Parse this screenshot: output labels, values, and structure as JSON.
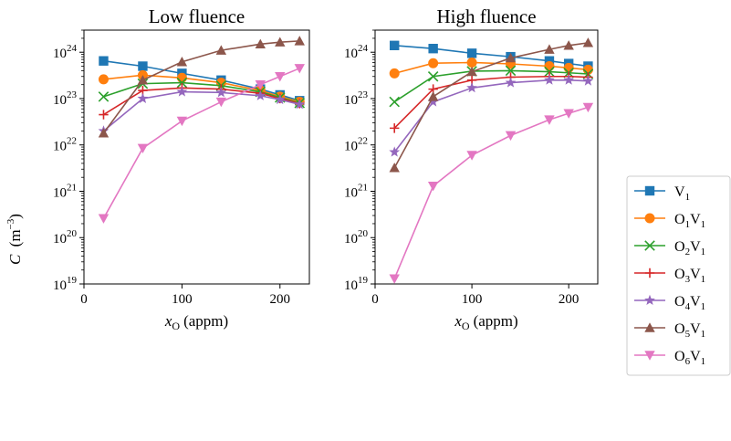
{
  "figure": {
    "ylabel_main": "C",
    "ylabel_unit": "(m",
    "ylabel_exp": "−3",
    "ylabel_close": ")",
    "xlabel_main": "x",
    "xlabel_sub": "O",
    "xlabel_unit": "(appm)"
  },
  "legend": [
    {
      "label": "V",
      "sub": "1",
      "color": "#1f77b4",
      "marker": "square"
    },
    {
      "label": "O",
      "sub": "1",
      "tail": "V",
      "tail_sub": "1",
      "color": "#ff7f0e",
      "marker": "circle"
    },
    {
      "label": "O",
      "sub": "2",
      "tail": "V",
      "tail_sub": "1",
      "color": "#2ca02c",
      "marker": "x"
    },
    {
      "label": "O",
      "sub": "3",
      "tail": "V",
      "tail_sub": "1",
      "color": "#d62728",
      "marker": "plus"
    },
    {
      "label": "O",
      "sub": "4",
      "tail": "V",
      "tail_sub": "1",
      "color": "#9467bd",
      "marker": "star"
    },
    {
      "label": "O",
      "sub": "5",
      "tail": "V",
      "tail_sub": "1",
      "color": "#8c564b",
      "marker": "triangle-up"
    },
    {
      "label": "O",
      "sub": "6",
      "tail": "V",
      "tail_sub": "1",
      "color": "#e377c2",
      "marker": "triangle-down"
    }
  ],
  "chart_data": [
    {
      "type": "line",
      "title": "Low fluence",
      "xlabel": "x_O (appm)",
      "ylabel": "C (m^-3)",
      "yscale": "log",
      "xlim": [
        0,
        230
      ],
      "ylim": [
        1e+19,
        3e+24
      ],
      "xticks": [
        0,
        100,
        200
      ],
      "yticks_exp": [
        19,
        20,
        21,
        22,
        23,
        24
      ],
      "x": [
        20,
        60,
        100,
        140,
        180,
        200,
        220
      ],
      "series": [
        {
          "name": "V1",
          "values": [
            6.5e+23,
            5e+23,
            3.5e+23,
            2.5e+23,
            1.6e+23,
            1.2e+23,
            9e+22
          ]
        },
        {
          "name": "O1V1",
          "values": [
            2.6e+23,
            3.2e+23,
            2.8e+23,
            2.2e+23,
            1.5e+23,
            1.1e+23,
            8.5e+22
          ]
        },
        {
          "name": "O2V1",
          "values": [
            1.1e+23,
            2.1e+23,
            2.2e+23,
            1.9e+23,
            1.4e+23,
            1.05e+23,
            8e+22
          ]
        },
        {
          "name": "O3V1",
          "values": [
            4.5e+22,
            1.5e+23,
            1.7e+23,
            1.6e+23,
            1.3e+23,
            1e+23,
            7.8e+22
          ]
        },
        {
          "name": "O4V1",
          "values": [
            2e+22,
            1e+23,
            1.4e+23,
            1.35e+23,
            1.15e+23,
            9.5e+22,
            7.5e+22
          ]
        },
        {
          "name": "O5V1",
          "values": [
            1.8e+22,
            2.5e+23,
            6.2e+23,
            1.1e+24,
            1.5e+24,
            1.65e+24,
            1.75e+24
          ]
        },
        {
          "name": "O6V1",
          "values": [
            2.6e+20,
            8.5e+21,
            3.3e+22,
            8.5e+22,
            2e+23,
            3e+23,
            4.5e+23
          ]
        }
      ]
    },
    {
      "type": "line",
      "title": "High fluence",
      "xlabel": "x_O (appm)",
      "ylabel": "",
      "yscale": "log",
      "xlim": [
        0,
        230
      ],
      "ylim": [
        1e+19,
        3e+24
      ],
      "xticks": [
        0,
        100,
        200
      ],
      "yticks_exp": [
        19,
        20,
        21,
        22,
        23,
        24
      ],
      "x": [
        20,
        60,
        100,
        140,
        180,
        200,
        220
      ],
      "series": [
        {
          "name": "V1",
          "values": [
            1.4e+24,
            1.2e+24,
            9.5e+23,
            8e+23,
            6.5e+23,
            5.7e+23,
            5e+23
          ]
        },
        {
          "name": "O1V1",
          "values": [
            3.5e+23,
            5.8e+23,
            6e+23,
            5.6e+23,
            5e+23,
            4.6e+23,
            4.2e+23
          ]
        },
        {
          "name": "O2V1",
          "values": [
            8.5e+22,
            3e+23,
            3.9e+23,
            4e+23,
            3.8e+23,
            3.6e+23,
            3.4e+23
          ]
        },
        {
          "name": "O3V1",
          "values": [
            2.3e+22,
            1.6e+23,
            2.5e+23,
            2.9e+23,
            3e+23,
            3e+23,
            2.9e+23
          ]
        },
        {
          "name": "O4V1",
          "values": [
            7e+21,
            8.5e+22,
            1.7e+23,
            2.2e+23,
            2.5e+23,
            2.5e+23,
            2.4e+23
          ]
        },
        {
          "name": "O5V1",
          "values": [
            3.2e+21,
            1.1e+23,
            3.8e+23,
            7.5e+23,
            1.15e+24,
            1.4e+24,
            1.6e+24
          ]
        },
        {
          "name": "O6V1",
          "values": [
            1.3e+19,
            1.3e+21,
            6e+21,
            1.6e+22,
            3.5e+22,
            4.8e+22,
            6.5e+22
          ]
        }
      ]
    }
  ]
}
